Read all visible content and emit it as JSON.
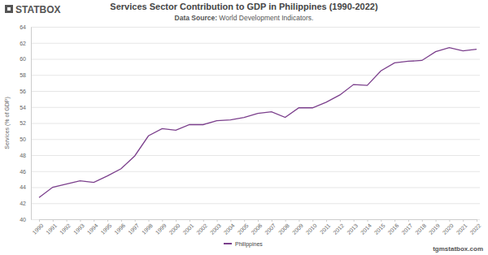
{
  "chart_data": {
    "type": "line",
    "title": "Services Sector Contribution to GDP in Philippines (1990-2022)",
    "subtitle": "Data Source: World Development Indicators.",
    "logo": "STATBOX",
    "watermark": "tgmstatbox.com",
    "y_label": "Services (% of GDP)",
    "categories": [
      "1990",
      "1991",
      "1992",
      "1993",
      "1994",
      "1995",
      "1996",
      "1997",
      "1998",
      "1999",
      "2000",
      "2001",
      "2002",
      "2003",
      "2004",
      "2005",
      "2006",
      "2007",
      "2008",
      "2009",
      "2010",
      "2011",
      "2012",
      "2013",
      "2014",
      "2015",
      "2016",
      "2017",
      "2018",
      "2019",
      "2020",
      "2021",
      "2022"
    ],
    "series": [
      {
        "name": "Philippines",
        "color": "#7b3f8c",
        "values": [
          42.7,
          44.0,
          44.4,
          44.8,
          44.6,
          45.4,
          46.3,
          47.9,
          50.4,
          51.3,
          51.1,
          51.8,
          51.8,
          52.3,
          52.4,
          52.7,
          53.2,
          53.4,
          52.7,
          53.9,
          53.9,
          54.6,
          55.5,
          56.8,
          56.7,
          58.5,
          59.5,
          59.7,
          59.8,
          60.9,
          61.4,
          61.0,
          61.2
        ]
      }
    ],
    "ylim": [
      40,
      64
    ],
    "yticks": [
      40,
      42,
      44,
      46,
      48,
      50,
      52,
      54,
      56,
      58,
      60,
      62,
      64
    ],
    "grid": true,
    "legend": "bottom"
  }
}
